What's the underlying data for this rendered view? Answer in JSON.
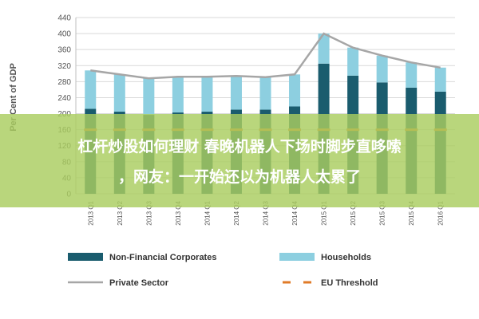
{
  "chart_data": {
    "type": "bar",
    "stacked": true,
    "categories": [
      "2013 Q1",
      "2013 Q2",
      "2013 Q3",
      "2013 Q4",
      "2014 Q1",
      "2014 Q2",
      "2014 Q3",
      "2014 Q4",
      "2015 Q1",
      "2015 Q2",
      "2015 Q3",
      "2015 Q4",
      "2016 Q1"
    ],
    "series": [
      {
        "name": "Non-Financial Corporates",
        "kind": "bar",
        "color": "#1a5c6e",
        "values": [
          212,
          205,
          197,
          203,
          205,
          210,
          210,
          218,
          325,
          295,
          278,
          265,
          255
        ]
      },
      {
        "name": "Households",
        "kind": "bar",
        "color": "#8dcfe0",
        "values": [
          96,
          93,
          91,
          89,
          87,
          84,
          81,
          80,
          75,
          70,
          67,
          63,
          60
        ]
      },
      {
        "name": "Private Sector",
        "kind": "line",
        "color": "#a6a6a6",
        "values": [
          308,
          298,
          288,
          292,
          292,
          294,
          291,
          298,
          400,
          365,
          345,
          328,
          315
        ]
      },
      {
        "name": "EU Threshold",
        "kind": "dash",
        "color": "#e07b28",
        "values": [
          160,
          160,
          160,
          160,
          160,
          160,
          160,
          160,
          160,
          160,
          160,
          160,
          160
        ]
      }
    ],
    "ylabel": "Per Cent of GDP",
    "yticks": [
      0,
      40,
      80,
      120,
      160,
      200,
      240,
      280,
      320,
      360,
      400,
      440
    ],
    "ylim": [
      0,
      440
    ],
    "grid": true,
    "legend": "bottom"
  },
  "overlay": {
    "line1": "杠杆炒股如何理财 春晚机器人下场时脚步直哆嗦",
    "line2": "，网友：一开始还以为机器人太累了"
  }
}
